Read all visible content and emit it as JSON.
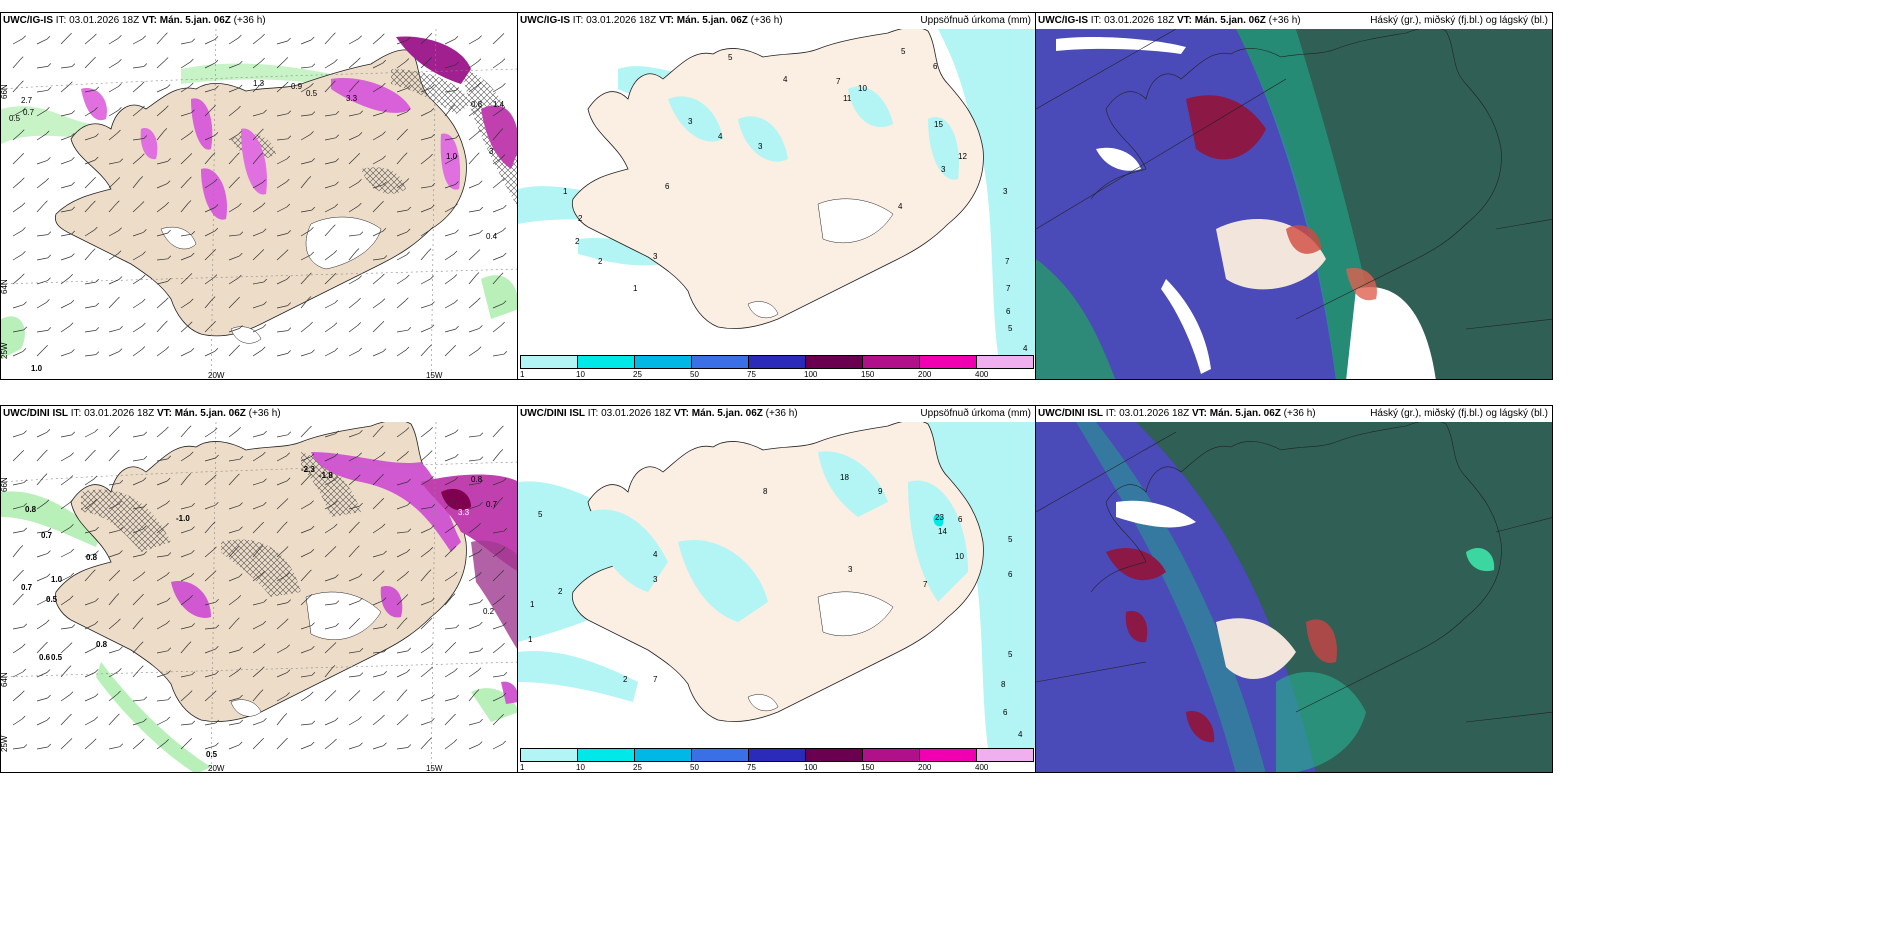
{
  "panels": {
    "top_left": {
      "model": "UWC/IG-IS",
      "it_label": "IT:",
      "it": "03.01.2026 18Z",
      "vt_label": "VT:",
      "vt": "Mán. 5.jan. 06Z",
      "lead": "(+36 h)"
    },
    "top_mid": {
      "model": "UWC/IG-IS",
      "it_label": "IT:",
      "it": "03.01.2026 18Z",
      "vt_label": "VT:",
      "vt": "Mán. 5.jan. 06Z",
      "lead": "(+36 h)",
      "right": "Uppsöfnuð úrkoma (mm)"
    },
    "top_right": {
      "model": "UWC/IG-IS",
      "it_label": "IT:",
      "it": "03.01.2026 18Z",
      "vt_label": "VT:",
      "vt": "Mán. 5.jan. 06Z",
      "lead": "(+36 h)",
      "right": "Háský (gr.), miðský (fj.bl.) og lágský (bl.)"
    },
    "bot_left": {
      "model": "UWC/DINI ISL",
      "it_label": "IT:",
      "it": "03.01.2026 18Z",
      "vt_label": "VT:",
      "vt": "Mán. 5.jan. 06Z",
      "lead": "(+36 h)"
    },
    "bot_mid": {
      "model": "UWC/DINI ISL",
      "it_label": "IT:",
      "it": "03.01.2026 18Z",
      "vt_label": "VT:",
      "vt": "Mán. 5.jan. 06Z",
      "lead": "(+36 h)",
      "right": "Uppsöfnuð úrkoma (mm)"
    },
    "bot_right": {
      "model": "UWC/DINI ISL",
      "it_label": "IT:",
      "it": "03.01.2026 18Z",
      "vt_label": "VT:",
      "vt": "Mán. 5.jan. 06Z",
      "lead": "(+36 h)",
      "right": "Háský (gr.), miðský (fj.bl.) og lágský (bl.)"
    }
  },
  "grid_labels": {
    "lon_20w": "20W",
    "lon_15w": "15W",
    "lon_25w": "25W",
    "lat_66n": "66N",
    "lat_64n": "64N"
  },
  "colorbar": {
    "colors": [
      "#b3f5f5",
      "#00e8e8",
      "#00b8e6",
      "#3a6fe6",
      "#2c2ab8",
      "#6b0050",
      "#b0108a",
      "#f000b0",
      "#f0b0f0"
    ],
    "ticks": [
      "1",
      "10",
      "25",
      "50",
      "75",
      "100",
      "150",
      "200",
      "400"
    ]
  },
  "top_left_values": [
    "2.7",
    "0.7",
    "0.5",
    "0.9",
    "0.5",
    "1.3",
    "3.3",
    "1.0",
    "0.4",
    "1.0",
    "0.8",
    "1.4",
    "3"
  ],
  "bot_left_values": [
    "0.8",
    "0.7",
    "0.8",
    "1.0",
    "0.7",
    "0.5",
    "0.8",
    "0.6",
    "0.5",
    "0.5",
    "-2.3",
    "-1.8",
    "-1.0",
    "0.8",
    "3.3",
    "0.7",
    "0.2"
  ],
  "top_mid_values": [
    "5",
    "4",
    "7",
    "11",
    "10",
    "5",
    "6",
    "3",
    "4",
    "3",
    "2",
    "1",
    "6",
    "2",
    "3",
    "2",
    "1",
    "4",
    "7",
    "3",
    "7",
    "6",
    "5",
    "4",
    "3",
    "12",
    "15"
  ],
  "bot_mid_values": [
    "1",
    "2",
    "5",
    "4",
    "3",
    "8",
    "9",
    "6",
    "18",
    "10",
    "14",
    "23",
    "7",
    "5",
    "2",
    "1",
    "6",
    "8",
    "3",
    "5",
    "7",
    "6",
    "4"
  ]
}
